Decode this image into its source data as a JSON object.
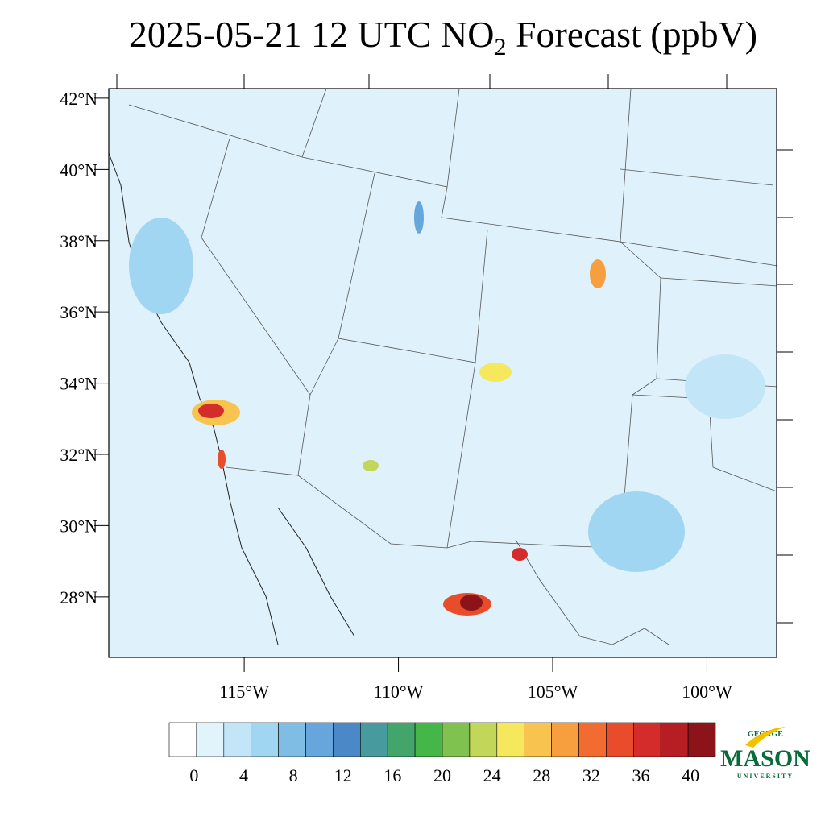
{
  "chart_data": {
    "type": "map",
    "title": "2025-05-21 12 UTC NO",
    "title_subscript": "2",
    "title_end": " Forecast (ppbV)",
    "ylim": [
      26.3,
      42.27
    ],
    "yticks": [
      {
        "value": 42,
        "label": "42°N"
      },
      {
        "value": 40,
        "label": "40°N"
      },
      {
        "value": 38,
        "label": "38°N"
      },
      {
        "value": 36,
        "label": "36°N"
      },
      {
        "value": 34,
        "label": "34°N"
      },
      {
        "value": 32,
        "label": "32°N"
      },
      {
        "value": 30,
        "label": "30°N"
      },
      {
        "value": 28,
        "label": "28°N"
      }
    ],
    "xlim": [
      -119.39,
      -97.74
    ],
    "xticks": [
      {
        "value": -115,
        "label": "115°W"
      },
      {
        "value": -110,
        "label": "110°W"
      },
      {
        "value": -105,
        "label": "105°W"
      },
      {
        "value": -100,
        "label": "100°W"
      }
    ],
    "colorbar": {
      "lim": [
        -2,
        42
      ],
      "ticks": [
        0,
        4,
        8,
        12,
        16,
        20,
        24,
        28,
        32,
        36,
        40
      ],
      "colors": [
        "#ffffff",
        "#e1f3fb",
        "#c2e6f7",
        "#a0d6f2",
        "#80bde4",
        "#66a6dc",
        "#4b88c8",
        "#479a9d",
        "#43a56b",
        "#45b748",
        "#7fc24f",
        "#c2d65a",
        "#f6e85c",
        "#f8c34f",
        "#f79f3f",
        "#f26b30",
        "#e84c2b",
        "#d42c2b",
        "#b71e24",
        "#8b1319"
      ]
    },
    "logo": {
      "top": "GEORGE",
      "main": "MASON",
      "bottom": "UNIVERSITY"
    }
  }
}
